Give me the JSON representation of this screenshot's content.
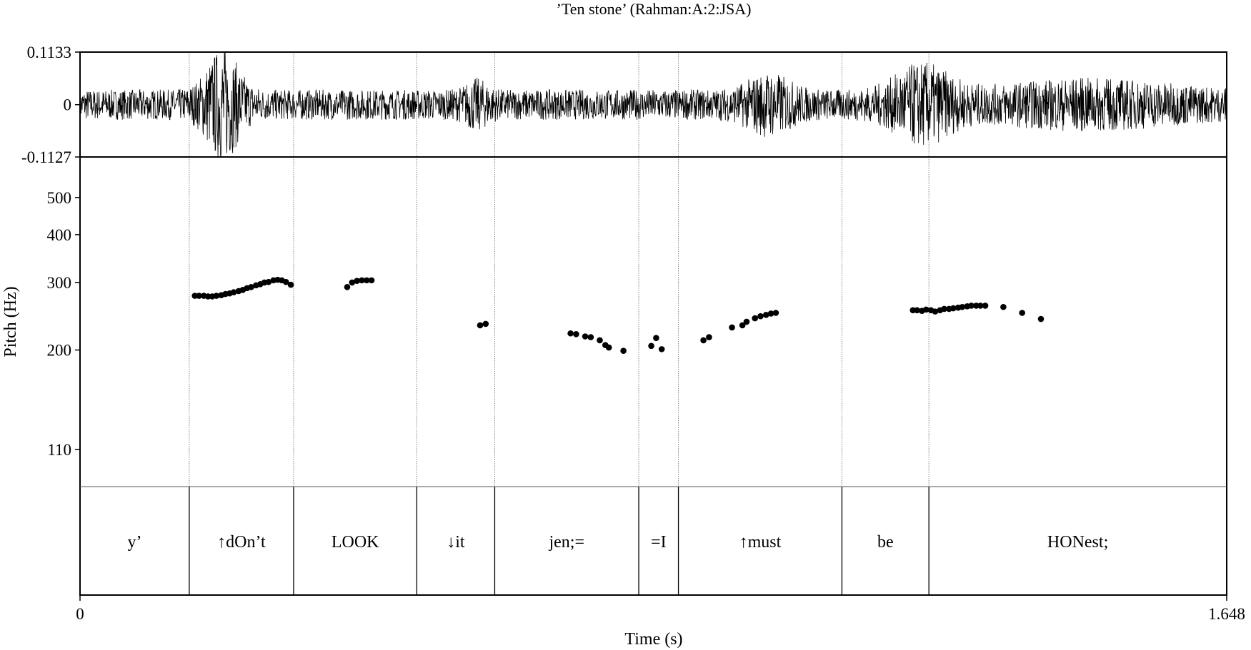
{
  "chart_data": {
    "type": "scatter",
    "title": "’Ten stone’ (Rahman:A:2:JSA)",
    "xlabel": "Time (s)",
    "ylabel": "Pitch (Hz)",
    "xlim": [
      0,
      1.648
    ],
    "x_ticks": [
      "0",
      "1.648"
    ],
    "waveform": {
      "ylim": [
        -0.1127,
        0.1133
      ],
      "y_ticks": [
        "0.1133",
        "0",
        "-0.1127"
      ]
    },
    "pitch": {
      "scale": "log",
      "ylim": [
        88,
        638
      ],
      "y_ticks": [
        500,
        400,
        300,
        200,
        110
      ],
      "y_tick_labels": [
        "500",
        "400",
        "300",
        "200",
        "110"
      ],
      "points": [
        [
          0.165,
          277
        ],
        [
          0.171,
          277
        ],
        [
          0.178,
          277
        ],
        [
          0.184,
          276
        ],
        [
          0.19,
          276
        ],
        [
          0.196,
          277
        ],
        [
          0.203,
          278
        ],
        [
          0.209,
          280
        ],
        [
          0.215,
          281
        ],
        [
          0.221,
          283
        ],
        [
          0.228,
          285
        ],
        [
          0.234,
          287
        ],
        [
          0.24,
          290
        ],
        [
          0.246,
          292
        ],
        [
          0.253,
          295
        ],
        [
          0.259,
          297
        ],
        [
          0.265,
          300
        ],
        [
          0.271,
          301
        ],
        [
          0.278,
          304
        ],
        [
          0.284,
          305
        ],
        [
          0.29,
          304
        ],
        [
          0.296,
          301
        ],
        [
          0.303,
          296
        ],
        [
          0.384,
          292
        ],
        [
          0.391,
          300
        ],
        [
          0.398,
          303
        ],
        [
          0.405,
          304
        ],
        [
          0.412,
          304
        ],
        [
          0.419,
          304
        ],
        [
          0.575,
          232
        ],
        [
          0.583,
          234
        ],
        [
          0.705,
          221
        ],
        [
          0.713,
          220
        ],
        [
          0.726,
          217
        ],
        [
          0.734,
          216
        ],
        [
          0.747,
          212
        ],
        [
          0.755,
          206
        ],
        [
          0.76,
          203
        ],
        [
          0.781,
          199
        ],
        [
          0.821,
          205
        ],
        [
          0.828,
          215
        ],
        [
          0.836,
          201
        ],
        [
          0.896,
          212
        ],
        [
          0.904,
          216
        ],
        [
          0.937,
          229
        ],
        [
          0.952,
          232
        ],
        [
          0.958,
          237
        ],
        [
          0.97,
          242
        ],
        [
          0.978,
          245
        ],
        [
          0.986,
          247
        ],
        [
          0.993,
          249
        ],
        [
          1.0,
          250
        ],
        [
          1.197,
          254
        ],
        [
          1.203,
          254
        ],
        [
          1.21,
          253
        ],
        [
          1.216,
          255
        ],
        [
          1.223,
          254
        ],
        [
          1.229,
          252
        ],
        [
          1.236,
          254
        ],
        [
          1.242,
          256
        ],
        [
          1.249,
          256
        ],
        [
          1.255,
          257
        ],
        [
          1.262,
          258
        ],
        [
          1.268,
          259
        ],
        [
          1.275,
          260
        ],
        [
          1.281,
          261
        ],
        [
          1.288,
          261
        ],
        [
          1.294,
          261
        ],
        [
          1.301,
          261
        ],
        [
          1.327,
          259
        ],
        [
          1.354,
          250
        ],
        [
          1.381,
          241
        ]
      ]
    },
    "tier": {
      "boundaries": [
        0.157,
        0.307,
        0.484,
        0.596,
        0.803,
        0.86,
        1.095,
        1.22
      ],
      "intervals": [
        "y’",
        "↑dOn’t",
        "LOOK",
        "↓it",
        "jen;=",
        "=I",
        "↑must",
        "be",
        "HONest;"
      ]
    },
    "grid": false,
    "colors": {
      "ink": "#000000",
      "boundary": "#888888"
    }
  }
}
